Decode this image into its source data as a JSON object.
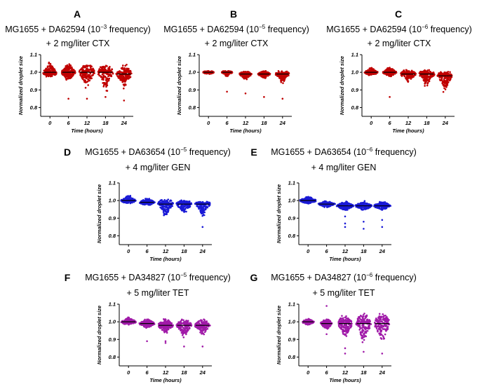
{
  "chart_data": [
    {
      "id": "A",
      "type": "scatter",
      "letter": "A",
      "title_pre": "MG1655 + DA62594 (10",
      "title_exp": "−3",
      "title_post": " frequency)",
      "subtitle": "+ 2 mg/liter CTX",
      "xlabel": "Time (hours)",
      "ylabel": "Normalized droplet size",
      "categories": [
        "0",
        "6",
        "12",
        "18",
        "24"
      ],
      "ylim": [
        0.75,
        1.1
      ],
      "yticks": [
        "0.8",
        "0.9",
        "1.0",
        "1.1"
      ],
      "color": "#c00000",
      "series": [
        {
          "x": "0",
          "median": 1.0,
          "lo": 0.97,
          "hi": 1.07,
          "width": 0.9,
          "outliers": []
        },
        {
          "x": "6",
          "median": 1.0,
          "lo": 0.95,
          "hi": 1.06,
          "width": 0.9,
          "outliers": [
            0.85
          ]
        },
        {
          "x": "12",
          "median": 1.0,
          "lo": 0.9,
          "hi": 1.06,
          "width": 1.0,
          "outliers": [
            0.85
          ]
        },
        {
          "x": "18",
          "median": 1.0,
          "lo": 0.88,
          "hi": 1.05,
          "width": 1.0,
          "outliers": [
            0.86
          ]
        },
        {
          "x": "24",
          "median": 0.99,
          "lo": 0.9,
          "hi": 1.05,
          "width": 1.0,
          "outliers": [
            0.84
          ]
        }
      ]
    },
    {
      "id": "B",
      "type": "scatter",
      "letter": "B",
      "title_pre": "MG1655 + DA62594 (10",
      "title_exp": "−5",
      "title_post": " frequency)",
      "subtitle": "+ 2 mg/liter CTX",
      "xlabel": "Time (hours)",
      "ylabel": "Normalized droplet size",
      "categories": [
        "0",
        "6",
        "12",
        "18",
        "24"
      ],
      "ylim": [
        0.75,
        1.1
      ],
      "yticks": [
        "0.8",
        "0.9",
        "1.0",
        "1.1"
      ],
      "color": "#c00000",
      "series": [
        {
          "x": "0",
          "median": 1.0,
          "lo": 0.99,
          "hi": 1.01,
          "width": 0.7,
          "outliers": []
        },
        {
          "x": "6",
          "median": 1.0,
          "lo": 0.97,
          "hi": 1.01,
          "width": 0.7,
          "outliers": [
            0.89
          ]
        },
        {
          "x": "12",
          "median": 0.99,
          "lo": 0.95,
          "hi": 1.01,
          "width": 0.8,
          "outliers": [
            0.88
          ]
        },
        {
          "x": "18",
          "median": 0.99,
          "lo": 0.96,
          "hi": 1.01,
          "width": 0.8,
          "outliers": [
            0.86
          ]
        },
        {
          "x": "24",
          "median": 0.99,
          "lo": 0.93,
          "hi": 1.01,
          "width": 0.9,
          "outliers": [
            0.85
          ]
        }
      ]
    },
    {
      "id": "C",
      "type": "scatter",
      "letter": "C",
      "title_pre": "MG1655 + DA62594 (10",
      "title_exp": "−6",
      "title_post": " frequency)",
      "subtitle": "+ 2 mg/liter CTX",
      "xlabel": "Time (hours)",
      "ylabel": "Normalized droplet size",
      "categories": [
        "0",
        "6",
        "12",
        "18",
        "24"
      ],
      "ylim": [
        0.75,
        1.1
      ],
      "yticks": [
        "0.8",
        "0.9",
        "1.0",
        "1.1"
      ],
      "color": "#c00000",
      "series": [
        {
          "x": "0",
          "median": 1.0,
          "lo": 0.98,
          "hi": 1.03,
          "width": 0.9,
          "outliers": []
        },
        {
          "x": "6",
          "median": 1.0,
          "lo": 0.97,
          "hi": 1.03,
          "width": 0.9,
          "outliers": [
            0.86
          ]
        },
        {
          "x": "12",
          "median": 0.99,
          "lo": 0.93,
          "hi": 1.02,
          "width": 1.0,
          "outliers": []
        },
        {
          "x": "18",
          "median": 0.99,
          "lo": 0.91,
          "hi": 1.02,
          "width": 1.0,
          "outliers": []
        },
        {
          "x": "24",
          "median": 0.98,
          "lo": 0.88,
          "hi": 1.01,
          "width": 1.0,
          "outliers": []
        }
      ]
    },
    {
      "id": "D",
      "type": "scatter",
      "letter": "D",
      "title_pre": "MG1655 + DA63654 (10",
      "title_exp": "−5",
      "title_post": " frequency)",
      "subtitle": "+ 4 mg/liter GEN",
      "xlabel": "Time (hours)",
      "ylabel": "Normalized droplet size",
      "categories": [
        "0",
        "6",
        "12",
        "18",
        "24"
      ],
      "ylim": [
        0.75,
        1.1
      ],
      "yticks": [
        "0.8",
        "0.9",
        "1.0",
        "1.1"
      ],
      "color": "#1a1ad6",
      "series": [
        {
          "x": "0",
          "median": 1.0,
          "lo": 0.98,
          "hi": 1.03,
          "width": 1.0,
          "outliers": []
        },
        {
          "x": "6",
          "median": 0.99,
          "lo": 0.97,
          "hi": 1.02,
          "width": 1.0,
          "outliers": []
        },
        {
          "x": "12",
          "median": 0.98,
          "lo": 0.89,
          "hi": 1.01,
          "width": 1.0,
          "outliers": []
        },
        {
          "x": "18",
          "median": 0.98,
          "lo": 0.91,
          "hi": 1.01,
          "width": 1.0,
          "outliers": []
        },
        {
          "x": "24",
          "median": 0.98,
          "lo": 0.9,
          "hi": 1.0,
          "width": 1.0,
          "outliers": [
            0.85
          ]
        }
      ]
    },
    {
      "id": "E",
      "type": "scatter",
      "letter": "E",
      "title_pre": "MG1655 + DA63654 (10",
      "title_exp": "−6",
      "title_post": " frequency)",
      "subtitle": "+ 4 mg/liter GEN",
      "xlabel": "Time (hours)",
      "ylabel": "Normalized droplet size",
      "categories": [
        "0",
        "6",
        "12",
        "18",
        "24"
      ],
      "ylim": [
        0.75,
        1.1
      ],
      "yticks": [
        "0.8",
        "0.9",
        "1.0",
        "1.1"
      ],
      "color": "#1a1ad6",
      "series": [
        {
          "x": "0",
          "median": 1.0,
          "lo": 0.98,
          "hi": 1.03,
          "width": 1.1,
          "outliers": []
        },
        {
          "x": "6",
          "median": 0.98,
          "lo": 0.96,
          "hi": 1.0,
          "width": 1.1,
          "outliers": []
        },
        {
          "x": "12",
          "median": 0.97,
          "lo": 0.94,
          "hi": 1.0,
          "width": 1.1,
          "outliers": [
            0.91,
            0.87,
            0.85
          ]
        },
        {
          "x": "18",
          "median": 0.97,
          "lo": 0.94,
          "hi": 1.0,
          "width": 1.1,
          "outliers": [
            0.88,
            0.84
          ]
        },
        {
          "x": "24",
          "median": 0.97,
          "lo": 0.94,
          "hi": 1.0,
          "width": 1.1,
          "outliers": [
            0.89,
            0.85
          ]
        }
      ]
    },
    {
      "id": "F",
      "type": "scatter",
      "letter": "F",
      "title_pre": "MG1655 + DA34827 (10",
      "title_exp": "−5",
      "title_post": " frequency)",
      "subtitle": "+ 5 mg/liter TET",
      "xlabel": "Time (hours)",
      "ylabel": "Normalized droplet size",
      "categories": [
        "0",
        "6",
        "12",
        "18",
        "24"
      ],
      "ylim": [
        0.75,
        1.1
      ],
      "yticks": [
        "0.8",
        "0.9",
        "1.0",
        "1.1"
      ],
      "color": "#a01aa8",
      "series": [
        {
          "x": "0",
          "median": 1.0,
          "lo": 0.98,
          "hi": 1.03,
          "width": 1.0,
          "outliers": []
        },
        {
          "x": "6",
          "median": 0.99,
          "lo": 0.96,
          "hi": 1.02,
          "width": 1.0,
          "outliers": [
            0.89
          ]
        },
        {
          "x": "12",
          "median": 0.98,
          "lo": 0.93,
          "hi": 1.02,
          "width": 1.0,
          "outliers": [
            0.89,
            0.88
          ]
        },
        {
          "x": "18",
          "median": 0.98,
          "lo": 0.9,
          "hi": 1.02,
          "width": 1.0,
          "outliers": [
            0.86
          ]
        },
        {
          "x": "24",
          "median": 0.98,
          "lo": 0.92,
          "hi": 1.02,
          "width": 1.0,
          "outliers": [
            0.86
          ]
        }
      ]
    },
    {
      "id": "G",
      "type": "scatter",
      "letter": "G",
      "title_pre": "MG1655 + DA34827 (10",
      "title_exp": "−6",
      "title_post": " frequency)",
      "subtitle": "+ 5 mg/liter TET",
      "xlabel": "Time (hours)",
      "ylabel": "Normalized droplet size",
      "categories": [
        "0",
        "6",
        "12",
        "18",
        "24"
      ],
      "ylim": [
        0.75,
        1.1
      ],
      "yticks": [
        "0.8",
        "0.9",
        "1.0",
        "1.1"
      ],
      "color": "#a01aa8",
      "series": [
        {
          "x": "0",
          "median": 1.0,
          "lo": 0.98,
          "hi": 1.02,
          "width": 0.8,
          "outliers": []
        },
        {
          "x": "6",
          "median": 0.99,
          "lo": 0.95,
          "hi": 1.02,
          "width": 0.8,
          "outliers": [
            1.09,
            0.93
          ]
        },
        {
          "x": "12",
          "median": 0.99,
          "lo": 0.88,
          "hi": 1.04,
          "width": 0.9,
          "outliers": [
            0.85,
            0.82
          ]
        },
        {
          "x": "18",
          "median": 0.99,
          "lo": 0.87,
          "hi": 1.06,
          "width": 1.0,
          "outliers": [
            0.83
          ]
        },
        {
          "x": "24",
          "median": 0.99,
          "lo": 0.87,
          "hi": 1.07,
          "width": 1.0,
          "outliers": [
            0.82
          ]
        }
      ]
    }
  ]
}
